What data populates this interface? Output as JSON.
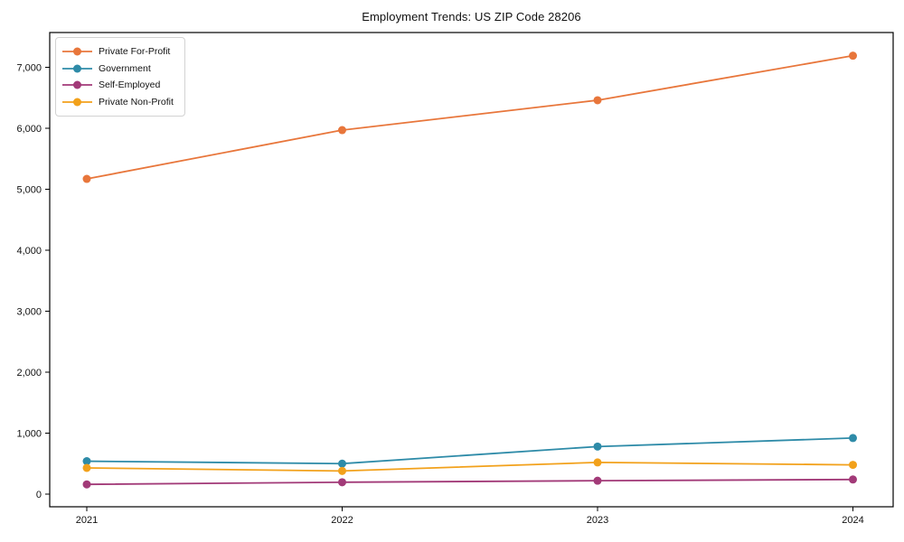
{
  "chart_data": {
    "type": "line",
    "title": "Employment Trends: US ZIP Code 28206",
    "categories": [
      "2021",
      "2022",
      "2023",
      "2024"
    ],
    "series": [
      {
        "name": "Private For-Profit",
        "color": "#E8763B",
        "values": [
          5170,
          5970,
          6460,
          7190
        ]
      },
      {
        "name": "Government",
        "color": "#2E8BA8",
        "values": [
          540,
          500,
          780,
          920
        ]
      },
      {
        "name": "Self-Employed",
        "color": "#A23A78",
        "values": [
          160,
          195,
          220,
          240
        ]
      },
      {
        "name": "Private Non-Profit",
        "color": "#F2A11B",
        "values": [
          430,
          380,
          520,
          480
        ]
      }
    ],
    "xlabel": "",
    "ylabel": "",
    "ylim": [
      0,
      7000
    ],
    "ytick_step": 1000,
    "ytick_labels": [
      "0",
      "1,000",
      "2,000",
      "3,000",
      "4,000",
      "5,000",
      "6,000",
      "7,000"
    ],
    "legend_position": "upper-left",
    "grid": false,
    "frame_color": "#000000",
    "background_color": "#ffffff"
  }
}
